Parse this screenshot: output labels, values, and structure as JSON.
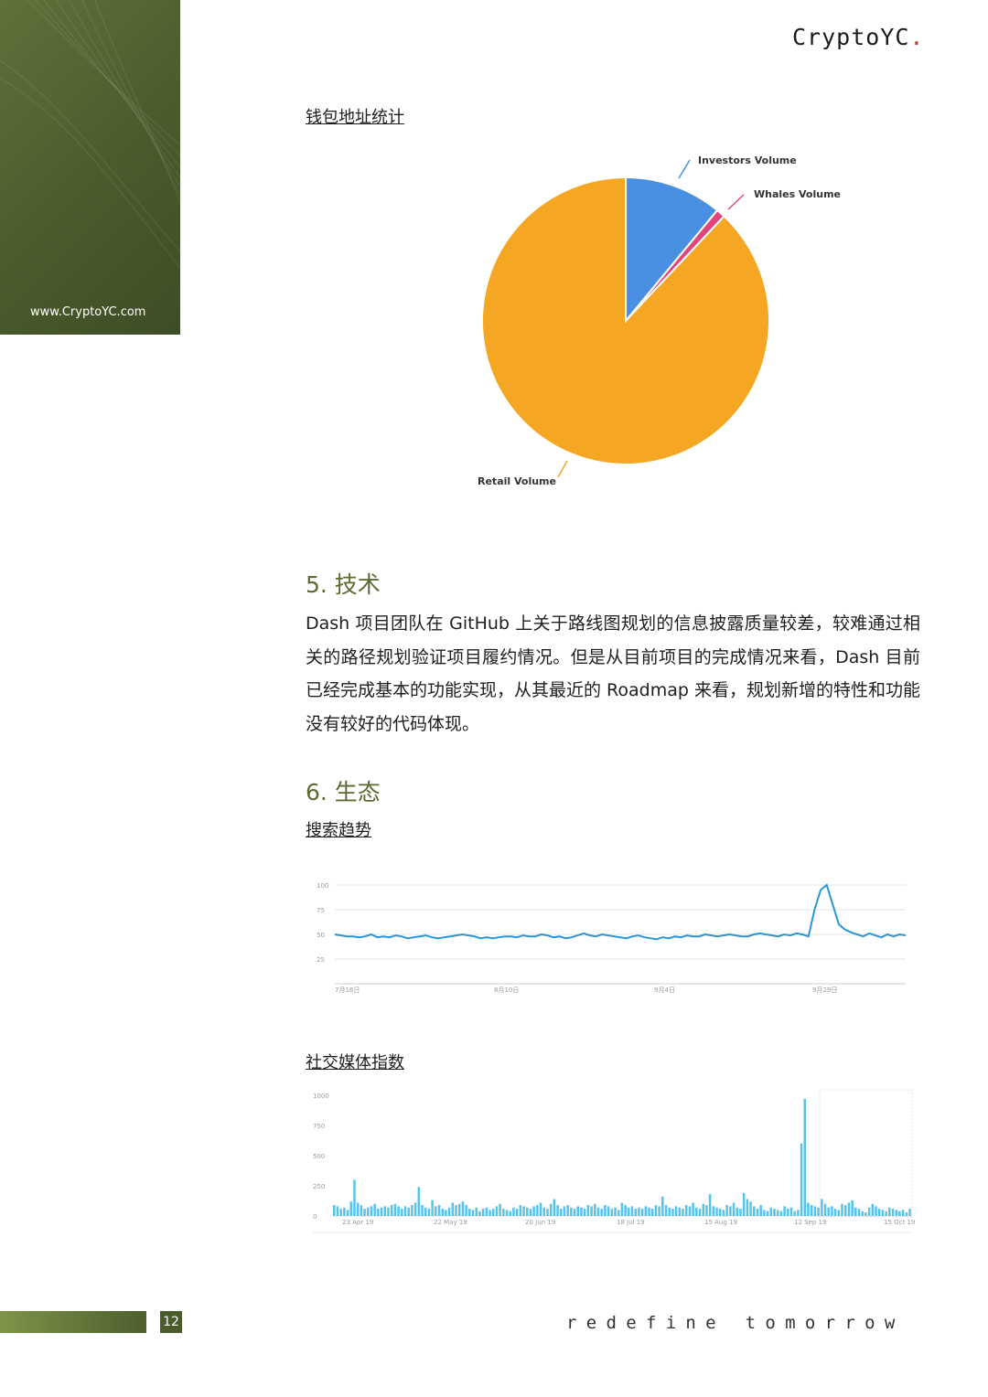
{
  "header": {
    "brand_text": "CryptoYC",
    "brand_dot": ".",
    "site_url": "www.CryptoYC.com"
  },
  "sections": {
    "wallet_label": "钱包地址统计",
    "tech_heading": "5. 技术",
    "tech_paragraph": "Dash 项目团队在 GitHub 上关于路线图规划的信息披露质量较差，较难通过相关的路径规划验证项目履约情况。但是从目前项目的完成情况来看，Dash 目前已经完成基本的功能实现，从其最近的 Roadmap 来看，规划新增的特性和功能没有较好的代码体现。",
    "eco_heading": "6. 生态",
    "search_label": "搜索趋势",
    "social_label": "社交媒体指数"
  },
  "footer": {
    "page_number": "12",
    "tagline": "redefine tomorrow"
  },
  "colors": {
    "accent_green": "#5b6b31",
    "investors": "#4a90e2",
    "whales": "#e0457b",
    "retail": "#f5a623",
    "trend_line": "#2b95d6",
    "social_bars": "#56c3ea"
  },
  "chart_data": [
    {
      "type": "pie",
      "labels": [
        "Investors Volume",
        "Whales Volume",
        "Retail Volume"
      ],
      "values": [
        11,
        1,
        88
      ]
    },
    {
      "type": "line",
      "ylim": [
        0,
        100
      ],
      "yticks": [
        100,
        75,
        50,
        25
      ],
      "xticks": [
        "7月16日",
        "8月10日",
        "9月4日",
        "9月29日"
      ],
      "values": [
        50,
        49,
        48,
        48,
        47,
        48,
        50,
        47,
        48,
        47,
        49,
        48,
        46,
        47,
        48,
        49,
        47,
        46,
        47,
        48,
        49,
        50,
        49,
        48,
        46,
        47,
        46,
        47,
        48,
        48,
        47,
        49,
        48,
        48,
        50,
        49,
        47,
        48,
        46,
        47,
        49,
        51,
        49,
        48,
        50,
        49,
        48,
        47,
        46,
        48,
        49,
        47,
        46,
        45,
        47,
        46,
        48,
        47,
        49,
        48,
        48,
        50,
        49,
        48,
        49,
        50,
        49,
        48,
        48,
        50,
        51,
        50,
        49,
        48,
        50,
        49,
        51,
        50,
        48,
        75,
        95,
        100,
        80,
        60,
        55,
        52,
        50,
        48,
        51,
        49,
        47,
        50,
        48,
        50,
        49
      ]
    },
    {
      "type": "bar",
      "ylim": [
        0,
        1000
      ],
      "yticks": [
        1000,
        750,
        500,
        250,
        0
      ],
      "xticks": [
        "23 Apr 19",
        "22 May 19",
        "20 Jun 19",
        "18 Jul 19",
        "15 Aug 19",
        "12 Sep 19",
        "15 Oct 19"
      ],
      "values": [
        90,
        80,
        60,
        70,
        50,
        120,
        300,
        110,
        90,
        60,
        70,
        80,
        100,
        60,
        70,
        80,
        70,
        90,
        100,
        80,
        60,
        80,
        70,
        90,
        110,
        240,
        90,
        70,
        60,
        130,
        80,
        90,
        60,
        50,
        70,
        110,
        90,
        100,
        120,
        90,
        60,
        50,
        70,
        40,
        60,
        70,
        50,
        60,
        80,
        100,
        60,
        50,
        40,
        70,
        60,
        90,
        80,
        70,
        60,
        80,
        90,
        110,
        70,
        60,
        100,
        140,
        90,
        60,
        80,
        90,
        70,
        60,
        80,
        70,
        60,
        90,
        80,
        100,
        70,
        60,
        90,
        80,
        60,
        70,
        50,
        110,
        90,
        70,
        80,
        60,
        70,
        60,
        80,
        70,
        60,
        90,
        80,
        160,
        90,
        70,
        60,
        80,
        70,
        60,
        90,
        80,
        110,
        70,
        60,
        100,
        90,
        180,
        80,
        70,
        60,
        50,
        90,
        80,
        110,
        70,
        60,
        190,
        140,
        120,
        80,
        60,
        90,
        50,
        40,
        70,
        60,
        50,
        40,
        80,
        60,
        70,
        40,
        50,
        600,
        970,
        110,
        90,
        80,
        70,
        140,
        100,
        70,
        80,
        60,
        50,
        100,
        90,
        110,
        130,
        70,
        60,
        40,
        30,
        70,
        100,
        80,
        60,
        50,
        40,
        70,
        60,
        50,
        40,
        50,
        30,
        60
      ]
    }
  ]
}
